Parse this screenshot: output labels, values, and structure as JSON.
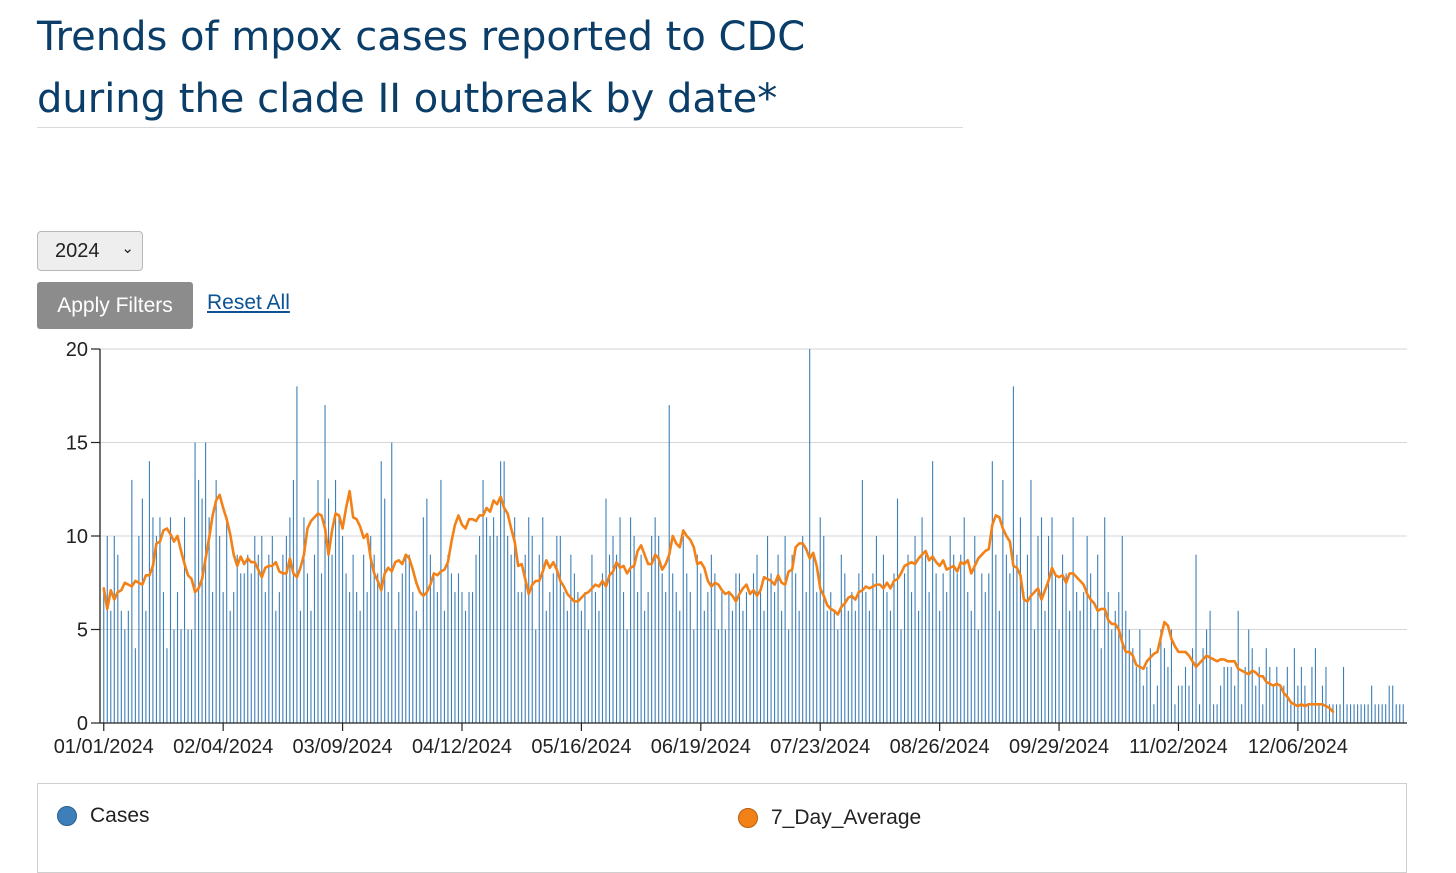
{
  "title_line1": "Trends of mpox cases reported to CDC",
  "title_line2": "during the clade II outbreak by date*",
  "filter": {
    "year_value": "2024",
    "apply_label": "Apply Filters",
    "reset_label": "Reset All"
  },
  "legend": [
    {
      "label": "Cases",
      "color": "#3d7fb8"
    },
    {
      "label": "7_Day_Average",
      "color": "#f28118"
    }
  ],
  "chart_data": {
    "type": "bar",
    "title": "Trends of mpox cases reported to CDC during the clade II outbreak by date*",
    "xlabel": "",
    "ylabel": "",
    "ylim": [
      0,
      20
    ],
    "y_ticks": [
      "0",
      "5",
      "10",
      "15",
      "20"
    ],
    "x_ticks": [
      "01/01/2024",
      "02/04/2024",
      "03/09/2024",
      "04/12/2024",
      "05/16/2024",
      "06/19/2024",
      "07/23/2024",
      "08/26/2024",
      "09/29/2024",
      "11/02/2024",
      "12/06/2024"
    ],
    "x_tick_day_index": [
      0,
      34,
      68,
      102,
      136,
      170,
      204,
      238,
      272,
      306,
      340
    ],
    "start_date": "01/01/2024",
    "grid": true,
    "legend_position": "bottom",
    "series": [
      {
        "name": "Cases",
        "color": "#3d7fb8",
        "kind": "bar",
        "values": [
          7,
          10,
          6,
          10,
          9,
          6,
          5,
          6,
          13,
          4,
          10,
          12,
          6,
          14,
          11,
          10,
          11,
          7,
          4,
          11,
          5,
          7,
          5,
          11,
          5,
          5,
          15,
          13,
          12,
          15,
          11,
          7,
          13,
          10,
          7,
          11,
          6,
          7,
          9,
          8,
          8,
          9,
          8,
          10,
          9,
          10,
          7,
          9,
          10,
          6,
          7,
          9,
          10,
          11,
          13,
          18,
          6,
          11,
          8,
          6,
          9,
          13,
          8,
          17,
          12,
          9,
          13,
          11,
          10,
          8,
          7,
          9,
          7,
          6,
          9,
          7,
          10,
          9,
          8,
          14,
          12,
          7,
          15,
          5,
          7,
          8,
          9,
          9,
          7,
          6,
          5,
          11,
          12,
          9,
          8,
          7,
          13,
          6,
          9,
          8,
          7,
          8,
          7,
          6,
          7,
          7,
          9,
          10,
          13,
          11,
          10,
          11,
          10,
          14,
          14,
          10,
          9,
          11,
          7,
          7,
          9,
          11,
          10,
          5,
          9,
          11,
          6,
          7,
          8,
          10,
          10,
          7,
          6,
          9,
          8,
          7,
          6,
          7,
          5,
          9,
          7,
          6,
          8,
          12,
          9,
          10,
          9,
          11,
          7,
          5,
          11,
          10,
          7,
          9,
          6,
          7,
          10,
          11,
          10,
          8,
          7,
          17,
          8,
          7,
          6,
          10,
          8,
          7,
          5,
          9,
          8,
          6,
          7,
          9,
          8,
          5,
          7,
          5,
          7,
          6,
          8,
          8,
          6,
          7,
          5,
          8,
          9,
          7,
          6,
          10,
          8,
          7,
          9,
          6,
          10,
          5,
          9,
          8,
          6,
          10,
          7,
          20,
          9,
          7,
          11,
          10,
          6,
          7,
          6,
          5,
          9,
          8,
          6,
          7,
          6,
          8,
          13,
          7,
          6,
          8,
          10,
          5,
          9,
          7,
          6,
          8,
          12,
          5,
          8,
          9,
          7,
          10,
          6,
          11,
          9,
          7,
          14,
          8,
          6,
          8,
          7,
          10,
          9,
          8,
          9,
          11,
          7,
          6,
          10,
          5,
          8,
          7,
          8,
          14,
          9,
          6,
          13,
          9,
          8,
          18,
          9,
          11,
          7,
          9,
          13,
          5,
          10,
          11,
          6,
          10,
          11,
          8,
          5,
          9,
          8,
          6,
          11,
          7,
          6,
          7,
          10,
          8,
          5,
          9,
          4,
          11,
          7,
          5,
          6,
          7,
          10,
          6,
          5,
          4,
          3,
          5,
          2,
          3,
          4,
          1,
          2,
          5,
          4,
          3,
          5,
          1,
          2,
          2,
          3,
          2,
          4,
          9,
          1,
          4,
          5,
          6,
          1,
          1,
          2,
          3,
          3,
          3,
          2,
          6,
          1,
          3,
          5,
          4,
          2,
          3,
          1,
          4,
          3,
          2,
          3,
          2,
          2,
          3,
          1,
          4,
          2,
          3,
          2,
          1,
          3,
          4,
          1,
          2,
          3,
          1,
          1,
          1,
          1,
          3,
          1,
          1,
          1,
          1,
          1,
          1,
          1,
          2,
          1,
          1,
          1,
          1,
          2,
          2,
          1,
          1,
          1
        ]
      },
      {
        "name": "7_Day_Average",
        "color": "#f28118",
        "kind": "line",
        "values": [
          7.2,
          6.1,
          7.1,
          6.6,
          7.0,
          7.1,
          7.5,
          7.4,
          7.3,
          7.6,
          7.5,
          7.4,
          7.9,
          7.9,
          8.4,
          9.6,
          9.7,
          10.3,
          10.4,
          10.1,
          9.7,
          10.0,
          9.2,
          8.5,
          7.9,
          7.7,
          7.0,
          7.2,
          7.7,
          8.8,
          9.9,
          11.1,
          11.9,
          12.2,
          11.5,
          10.9,
          10.1,
          9.0,
          8.4,
          8.9,
          8.5,
          8.8,
          8.6,
          8.6,
          8.2,
          7.8,
          8.3,
          8.4,
          8.4,
          8.6,
          8.1,
          8.0,
          8.0,
          8.8,
          8.0,
          7.8,
          8.3,
          9.0,
          10.4,
          10.8,
          11.0,
          11.2,
          11.1,
          10.4,
          9.0,
          10.3,
          11.2,
          11.1,
          10.4,
          11.5,
          12.4,
          11.0,
          10.9,
          10.5,
          9.9,
          10.1,
          8.8,
          8.0,
          7.6,
          7.1,
          8.0,
          8.3,
          8.1,
          8.6,
          8.7,
          8.5,
          9.0,
          8.8,
          8.2,
          7.5,
          7.0,
          6.8,
          7.0,
          7.4,
          8.0,
          7.9,
          8.1,
          8.2,
          8.6,
          9.7,
          10.6,
          11.1,
          10.6,
          10.4,
          10.9,
          10.9,
          10.8,
          11.1,
          11.1,
          11.5,
          11.3,
          11.9,
          11.7,
          12.1,
          11.5,
          11.2,
          10.4,
          9.7,
          8.4,
          8.5,
          7.7,
          6.9,
          7.4,
          7.6,
          7.6,
          8.1,
          8.7,
          8.3,
          8.6,
          8.2,
          7.6,
          7.3,
          6.9,
          6.7,
          6.5,
          6.5,
          6.7,
          6.9,
          7.0,
          7.2,
          7.4,
          7.3,
          7.6,
          7.3,
          7.9,
          8.1,
          8.6,
          8.3,
          8.4,
          8.0,
          8.3,
          8.4,
          9.2,
          9.5,
          9.0,
          8.5,
          8.5,
          9.0,
          8.8,
          8.2,
          8.5,
          9.0,
          10.0,
          9.6,
          9.4,
          10.3,
          10.0,
          9.8,
          9.4,
          8.5,
          8.6,
          8.3,
          7.6,
          7.3,
          7.5,
          7.4,
          7.1,
          6.9,
          7.0,
          6.8,
          6.5,
          6.9,
          7.2,
          7.4,
          6.9,
          7.1,
          6.8,
          7.1,
          7.8,
          7.7,
          7.6,
          7.4,
          7.9,
          7.5,
          7.4,
          8.1,
          8.2,
          9.4,
          9.6,
          9.6,
          9.3,
          8.8,
          9.1,
          8.4,
          7.2,
          6.8,
          6.3,
          6.1,
          6.0,
          5.8,
          6.2,
          6.4,
          6.7,
          6.8,
          6.6,
          7.0,
          7.1,
          7.3,
          7.2,
          7.3,
          7.4,
          7.4,
          7.2,
          7.5,
          7.2,
          7.6,
          7.7,
          8.0,
          8.4,
          8.5,
          8.6,
          8.5,
          8.8,
          9.0,
          9.2,
          8.7,
          8.9,
          8.6,
          8.4,
          8.7,
          8.2,
          8.3,
          8.4,
          8.1,
          8.6,
          8.5,
          8.7,
          8.0,
          8.4,
          8.8,
          9.0,
          9.2,
          9.3,
          10.6,
          11.1,
          11.0,
          10.4,
          10.0,
          9.7,
          8.4,
          8.3,
          7.9,
          6.6,
          6.5,
          6.8,
          7.0,
          7.2,
          6.6,
          7.1,
          7.6,
          8.3,
          7.9,
          7.8,
          7.9,
          7.5,
          8.0,
          8.0,
          7.8,
          7.6,
          7.4,
          6.9,
          6.6,
          6.4,
          6.0,
          6.1,
          6.1,
          5.5,
          5.3,
          5.3,
          5.0,
          4.3,
          3.8,
          3.8,
          3.6,
          3.1,
          3.0,
          2.9,
          3.3,
          3.5,
          3.7,
          3.8,
          4.6,
          5.4,
          5.2,
          4.5,
          4.1,
          3.8,
          3.8,
          3.8,
          3.6,
          3.3,
          3.0,
          3.2,
          3.4,
          3.6,
          3.5,
          3.4,
          3.3,
          3.4,
          3.4,
          3.3,
          3.3,
          3.3,
          2.9,
          2.8,
          2.7,
          2.6,
          2.8,
          2.7,
          2.5,
          2.5,
          2.2,
          2.1,
          2.0,
          2.1,
          2.0,
          1.6,
          1.4,
          1.1,
          1.0,
          0.9,
          1.0,
          0.9,
          1.0,
          1.0,
          1.0,
          1.0,
          1.0,
          0.9,
          0.8,
          0.6
        ]
      }
    ]
  }
}
